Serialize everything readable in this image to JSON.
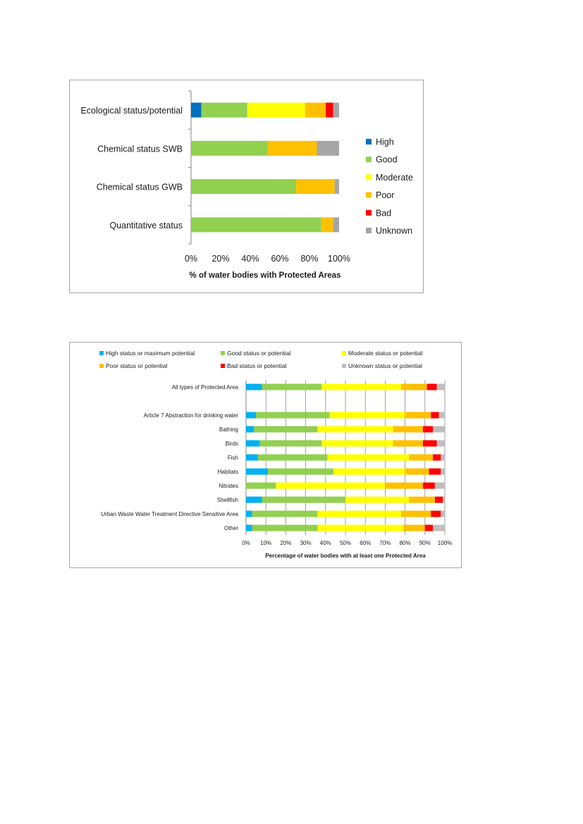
{
  "charts": [
    {
      "chart_data": {
        "type": "bar",
        "orientation": "horizontal",
        "stacked": true,
        "categories": [
          "Ecological status/potential",
          "Chemical status SWB",
          "Chemical status GWB",
          "Quantitative status"
        ],
        "series": [
          {
            "name": "High",
            "color": "#0070c0",
            "values": [
              7,
              0,
              0,
              0
            ]
          },
          {
            "name": "Good",
            "color": "#92d050",
            "values": [
              31,
              52,
              71,
              88
            ]
          },
          {
            "name": "Moderate",
            "color": "#ffff00",
            "values": [
              39,
              0,
              0,
              0
            ]
          },
          {
            "name": "Poor",
            "color": "#ffc000",
            "values": [
              14,
              33,
              26,
              8
            ]
          },
          {
            "name": "Bad",
            "color": "#ff0000",
            "values": [
              5,
              0,
              0,
              0
            ]
          },
          {
            "name": "Unknown",
            "color": "#a6a6a6",
            "values": [
              4,
              15,
              3,
              4
            ]
          }
        ],
        "xlabel": "% of water bodies with Protected Areas",
        "xlim": [
          0,
          100
        ],
        "xticks": [
          "0%",
          "20%",
          "40%",
          "60%",
          "80%",
          "100%"
        ],
        "grid": false,
        "legend": "right"
      }
    },
    {
      "chart_data": {
        "type": "bar",
        "orientation": "horizontal",
        "stacked": true,
        "categories": [
          "All types of Protected Area",
          "",
          "Article 7 Abstraction for drinking water",
          "Bathing",
          "Birds",
          "Fish",
          "Habitats",
          "Nitrates",
          "Shellfish",
          "Urban Waste Water Treatment Directive Sensitive Area",
          "Other"
        ],
        "series": [
          {
            "name": "High status or maximum potential",
            "color": "#00b0f0",
            "values": [
              8,
              null,
              5,
              4,
              7,
              6,
              11,
              0,
              8,
              3,
              3
            ]
          },
          {
            "name": "Good status or potential",
            "color": "#92d050",
            "values": [
              30,
              null,
              37,
              32,
              31,
              35,
              33,
              15,
              42,
              33,
              33
            ]
          },
          {
            "name": "Moderate status or potential",
            "color": "#ffff00",
            "values": [
              40,
              null,
              38,
              38,
              36,
              41,
              36,
              55,
              32,
              42,
              43
            ]
          },
          {
            "name": "Poor status or potential",
            "color": "#ffc000",
            "values": [
              13,
              null,
              13,
              15,
              15,
              12,
              12,
              19,
              13,
              15,
              11
            ]
          },
          {
            "name": "Bad status or potential",
            "color": "#ff0000",
            "values": [
              5,
              null,
              4,
              5,
              7,
              4,
              6,
              6,
              4,
              5,
              4
            ]
          },
          {
            "name": "Unknown status or potential",
            "color": "#bfbfbf",
            "values": [
              4,
              null,
              3,
              6,
              4,
              2,
              2,
              5,
              1,
              2,
              6
            ]
          }
        ],
        "xlabel": "Percentage of water bodies with at least one Protected Area",
        "xlim": [
          0,
          100
        ],
        "xticks": [
          "0%",
          "10%",
          "20%",
          "30%",
          "40%",
          "50%",
          "60%",
          "70%",
          "80%",
          "90%",
          "100%"
        ],
        "grid": true,
        "legend": "top"
      }
    }
  ]
}
